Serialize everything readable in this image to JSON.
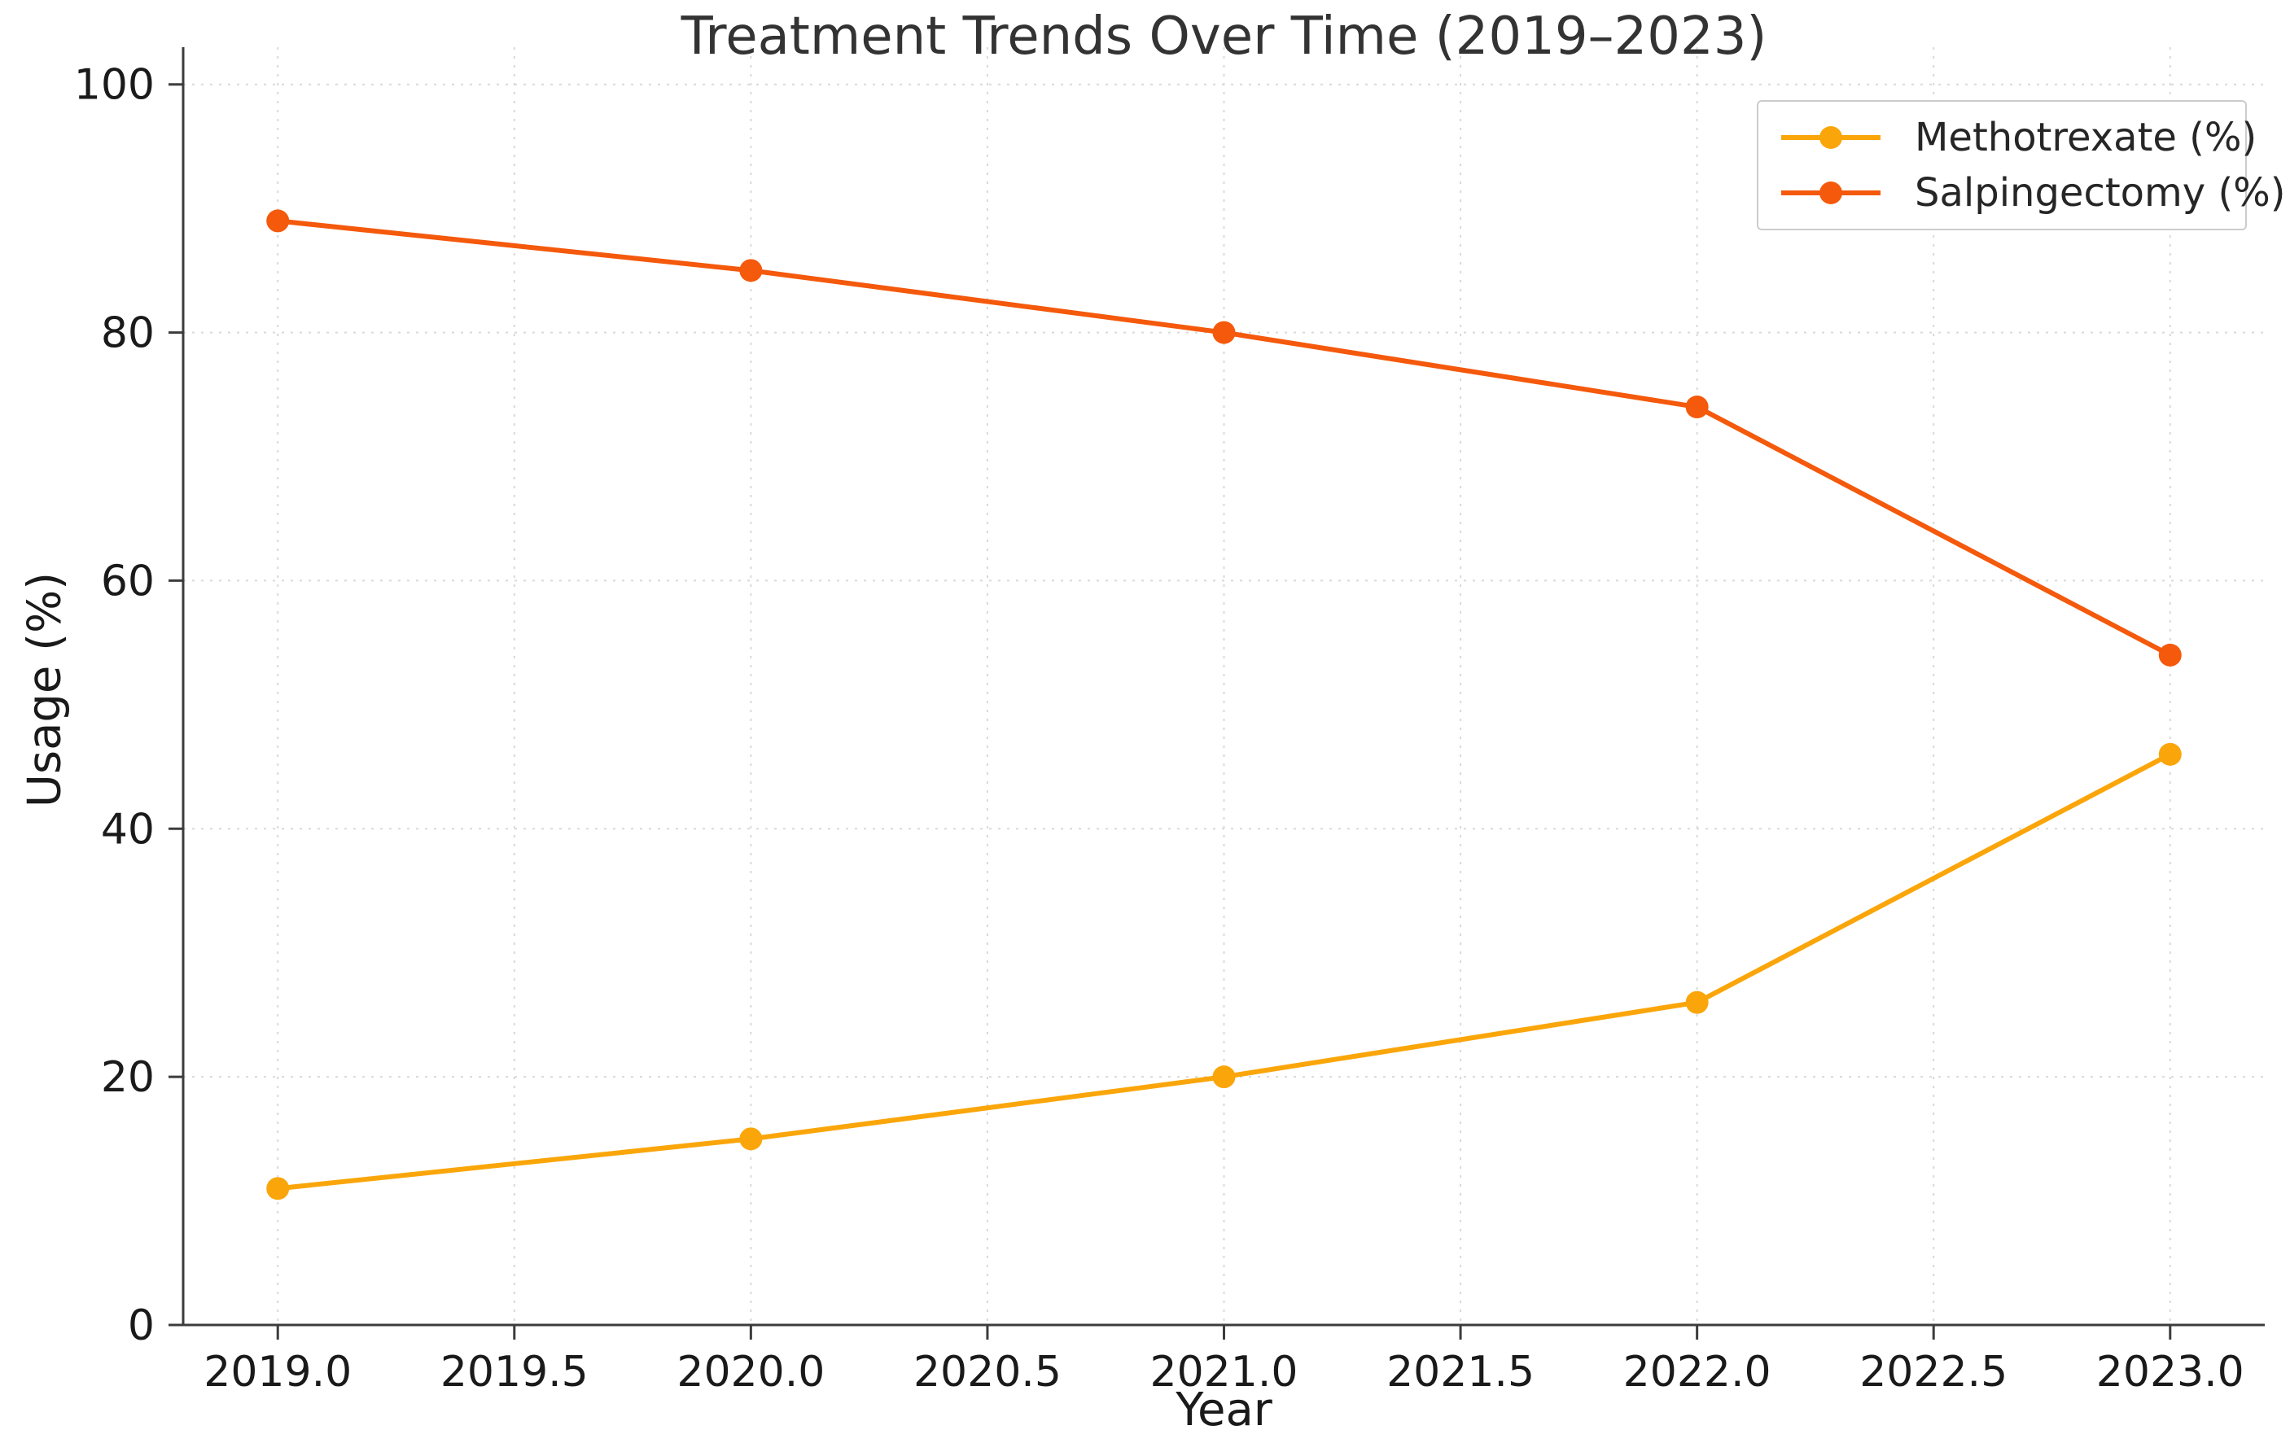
{
  "chart_data": {
    "type": "line",
    "title": "Treatment Trends Over Time (2019–2023)",
    "xlabel": "Year",
    "ylabel": "Usage (%)",
    "x": [
      2019,
      2020,
      2021,
      2022,
      2023
    ],
    "series": [
      {
        "name": "Methotrexate (%)",
        "color": "#FAA60A",
        "marker": "circle",
        "values": [
          11,
          15,
          20,
          26,
          46
        ]
      },
      {
        "name": "Salpingectomy (%)",
        "color": "#F4590C",
        "marker": "circle",
        "values": [
          89,
          85,
          80,
          74,
          54
        ]
      }
    ],
    "xlim": [
      2018.8,
      2023.2
    ],
    "ylim": [
      0,
      103
    ],
    "xticks": [
      2019.0,
      2019.5,
      2020.0,
      2020.5,
      2021.0,
      2021.5,
      2022.0,
      2022.5,
      2023.0
    ],
    "xticklabels": [
      "2019.0",
      "2019.5",
      "2020.0",
      "2020.5",
      "2021.0",
      "2021.5",
      "2022.0",
      "2022.5",
      "2023.0"
    ],
    "yticks": [
      0,
      20,
      40,
      60,
      80,
      100
    ],
    "yticklabels": [
      "0",
      "20",
      "40",
      "60",
      "80",
      "100"
    ],
    "grid": "dotted",
    "grid_color": "#d9d9d9",
    "axis_color": "#3c3c3c",
    "tick_label_color": "#1a1a1a",
    "legend_position": "top-right",
    "line_width": 6,
    "marker_radius": 14
  }
}
